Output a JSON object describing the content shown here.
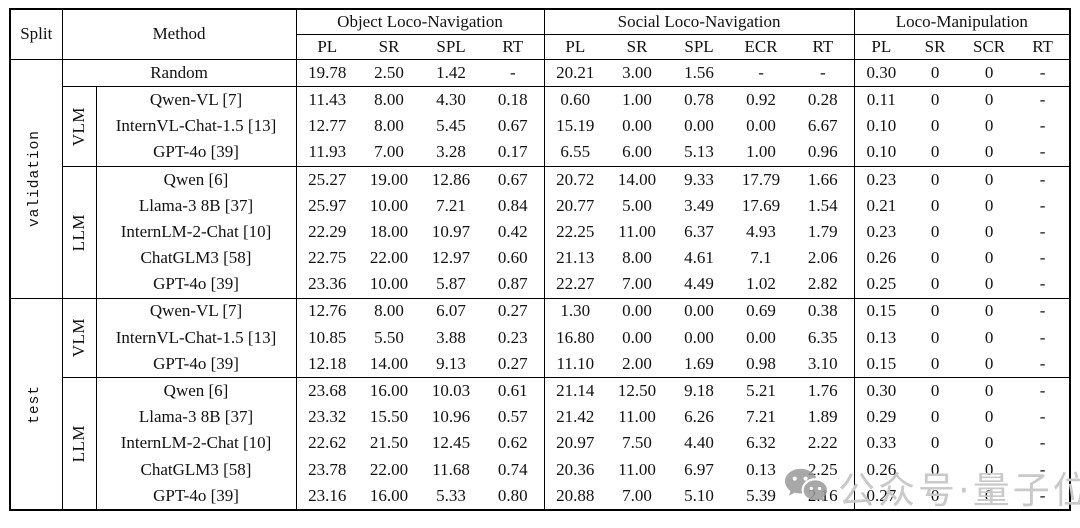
{
  "header": {
    "split": "Split",
    "method": "Method",
    "groups": [
      {
        "label": "Object Loco-Navigation",
        "cols": [
          "PL",
          "SR",
          "SPL",
          "RT"
        ]
      },
      {
        "label": "Social Loco-Navigation",
        "cols": [
          "PL",
          "SR",
          "SPL",
          "ECR",
          "RT"
        ]
      },
      {
        "label": "Loco-Manipulation",
        "cols": [
          "PL",
          "SR",
          "SCR",
          "RT"
        ]
      }
    ]
  },
  "rows": [
    {
      "split": {
        "label": "validation",
        "rowspan": 9,
        "rule": true
      },
      "method": "Random",
      "method_colspan": 2,
      "rule": true,
      "values": [
        "19.78",
        "2.50",
        "1.42",
        "-",
        "20.21",
        "3.00",
        "1.56",
        "-",
        "-",
        "0.30",
        "0",
        "0",
        "-"
      ]
    },
    {
      "group": {
        "label": "VLM",
        "rowspan": 3,
        "rule": true
      },
      "method": "Qwen-VL [7]",
      "values": [
        "11.43",
        "8.00",
        "4.30",
        "0.18",
        "0.60",
        "1.00",
        "0.78",
        "0.92",
        "0.28",
        "0.11",
        "0",
        "0",
        "-"
      ]
    },
    {
      "method": "InternVL-Chat-1.5 [13]",
      "values": [
        "12.77",
        "8.00",
        "5.45",
        "0.67",
        "15.19",
        "0.00",
        "0.00",
        "0.00",
        "6.67",
        "0.10",
        "0",
        "0",
        "-"
      ]
    },
    {
      "method": "GPT-4o [39]",
      "rule": true,
      "values": [
        "11.93",
        "7.00",
        "3.28",
        "0.17",
        "6.55",
        "6.00",
        "5.13",
        "1.00",
        "0.96",
        "0.10",
        "0",
        "0",
        "-"
      ]
    },
    {
      "group": {
        "label": "LLM",
        "rowspan": 5,
        "rule": true
      },
      "method": "Qwen [6]",
      "values": [
        "25.27",
        "19.00",
        "12.86",
        "0.67",
        "20.72",
        "14.00",
        "9.33",
        "17.79",
        "1.66",
        "0.23",
        "0",
        "0",
        "-"
      ]
    },
    {
      "method": "Llama-3 8B [37]",
      "values": [
        "25.97",
        "10.00",
        "7.21",
        "0.84",
        "20.77",
        "5.00",
        "3.49",
        "17.69",
        "1.54",
        "0.21",
        "0",
        "0",
        "-"
      ]
    },
    {
      "method": "InternLM-2-Chat [10]",
      "values": [
        "22.29",
        "18.00",
        "10.97",
        "0.42",
        "22.25",
        "11.00",
        "6.37",
        "4.93",
        "1.79",
        "0.23",
        "0",
        "0",
        "-"
      ]
    },
    {
      "method": "ChatGLM3 [58]",
      "values": [
        "22.75",
        "22.00",
        "12.97",
        "0.60",
        "21.13",
        "8.00",
        "4.61",
        "7.1",
        "2.06",
        "0.26",
        "0",
        "0",
        "-"
      ]
    },
    {
      "method": "GPT-4o [39]",
      "rule": true,
      "values": [
        "23.36",
        "10.00",
        "5.87",
        "0.87",
        "22.27",
        "7.00",
        "4.49",
        "1.02",
        "2.82",
        "0.25",
        "0",
        "0",
        "-"
      ]
    },
    {
      "split": {
        "label": "test",
        "rowspan": 8,
        "rule": false
      },
      "group": {
        "label": "VLM",
        "rowspan": 3,
        "rule": true
      },
      "method": "Qwen-VL [7]",
      "values": [
        "12.76",
        "8.00",
        "6.07",
        "0.27",
        "1.30",
        "0.00",
        "0.00",
        "0.69",
        "0.38",
        "0.15",
        "0",
        "0",
        "-"
      ]
    },
    {
      "method": "InternVL-Chat-1.5 [13]",
      "values": [
        "10.85",
        "5.50",
        "3.88",
        "0.23",
        "16.80",
        "0.00",
        "0.00",
        "0.00",
        "6.35",
        "0.13",
        "0",
        "0",
        "-"
      ]
    },
    {
      "method": "GPT-4o [39]",
      "rule": true,
      "values": [
        "12.18",
        "14.00",
        "9.13",
        "0.27",
        "11.10",
        "2.00",
        "1.69",
        "0.98",
        "3.10",
        "0.15",
        "0",
        "0",
        "-"
      ]
    },
    {
      "group": {
        "label": "LLM",
        "rowspan": 5,
        "rule": false
      },
      "method": "Qwen [6]",
      "values": [
        "23.68",
        "16.00",
        "10.03",
        "0.61",
        "21.14",
        "12.50",
        "9.18",
        "5.21",
        "1.76",
        "0.30",
        "0",
        "0",
        "-"
      ]
    },
    {
      "method": "Llama-3 8B [37]",
      "values": [
        "23.32",
        "15.50",
        "10.96",
        "0.57",
        "21.42",
        "11.00",
        "6.26",
        "7.21",
        "1.89",
        "0.29",
        "0",
        "0",
        "-"
      ]
    },
    {
      "method": "InternLM-2-Chat [10]",
      "values": [
        "22.62",
        "21.50",
        "12.45",
        "0.62",
        "20.97",
        "7.50",
        "4.40",
        "6.32",
        "2.22",
        "0.33",
        "0",
        "0",
        "-"
      ]
    },
    {
      "method": "ChatGLM3 [58]",
      "values": [
        "23.78",
        "22.00",
        "11.68",
        "0.74",
        "20.36",
        "11.00",
        "6.97",
        "0.13",
        "2.25",
        "0.26",
        "0",
        "0",
        "-"
      ]
    },
    {
      "method": "GPT-4o [39]",
      "values": [
        "23.16",
        "16.00",
        "5.33",
        "0.80",
        "20.88",
        "7.00",
        "5.10",
        "5.39",
        "2.16",
        "0.27",
        "0",
        "0",
        "-"
      ]
    }
  ],
  "watermark": {
    "icon": "wechat-icon",
    "text": "公众号·量子位"
  },
  "colors": {
    "border": "#000000",
    "watermark_icon": "#9a9a9a",
    "watermark_text": "#c9c9c9"
  }
}
